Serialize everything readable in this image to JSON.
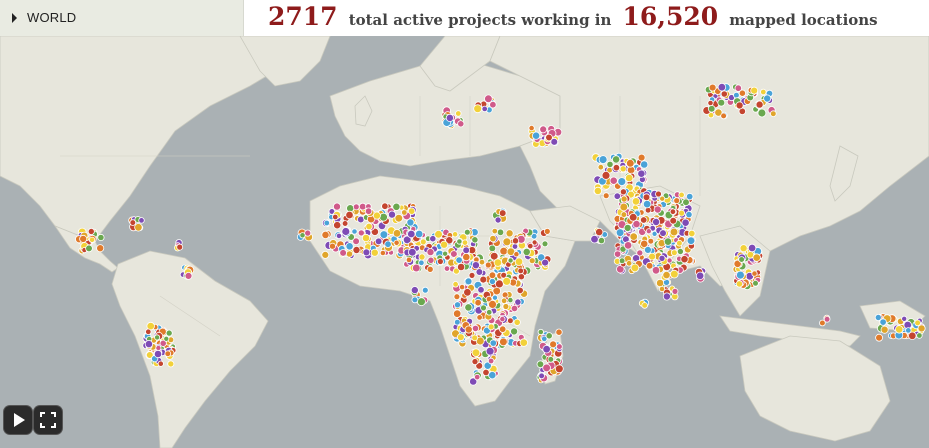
{
  "breadcrumb": {
    "label": "WORLD",
    "icon": "caret-right-icon"
  },
  "headline": {
    "active_projects": "2717",
    "text1": "total active projects working in",
    "locations": "16,520",
    "text2": "mapped locations"
  },
  "controls": {
    "play_icon": "play-icon",
    "fullscreen_icon": "fullscreen-icon"
  },
  "colors": {
    "ocean": "#aab1b4",
    "land": "#e7e6dc",
    "accent_red": "#8e1b1b",
    "marker_palette": [
      "#7e4bb5",
      "#e0a52b",
      "#c4452f",
      "#6aa84f",
      "#4aa3d8",
      "#e07a2b",
      "#d05a8a",
      "#f2d13a"
    ]
  }
}
